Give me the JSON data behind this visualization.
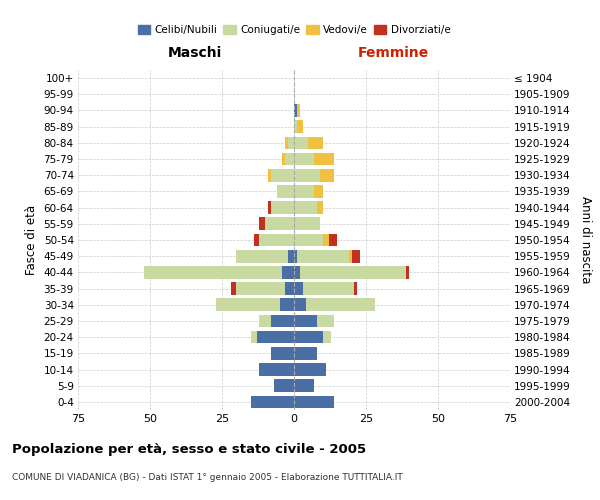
{
  "age_groups_bottom_to_top": [
    "0-4",
    "5-9",
    "10-14",
    "15-19",
    "20-24",
    "25-29",
    "30-34",
    "35-39",
    "40-44",
    "45-49",
    "50-54",
    "55-59",
    "60-64",
    "65-69",
    "70-74",
    "75-79",
    "80-84",
    "85-89",
    "90-94",
    "95-99",
    "100+"
  ],
  "birth_years_bottom_to_top": [
    "2000-2004",
    "1995-1999",
    "1990-1994",
    "1985-1989",
    "1980-1984",
    "1975-1979",
    "1970-1974",
    "1965-1969",
    "1960-1964",
    "1955-1959",
    "1950-1954",
    "1945-1949",
    "1940-1944",
    "1935-1939",
    "1930-1934",
    "1925-1929",
    "1920-1924",
    "1915-1919",
    "1910-1914",
    "1905-1909",
    "≤ 1904"
  ],
  "colors": {
    "celibi": "#4a6fa5",
    "coniugati": "#c8d9a2",
    "vedovi": "#f0c040",
    "divorziati": "#c0311f"
  },
  "maschi": {
    "celibi": [
      15,
      7,
      12,
      8,
      13,
      8,
      5,
      3,
      4,
      2,
      0,
      0,
      0,
      0,
      0,
      0,
      0,
      0,
      0,
      0,
      0
    ],
    "coniugati": [
      0,
      0,
      0,
      0,
      2,
      4,
      22,
      17,
      48,
      18,
      12,
      10,
      8,
      6,
      8,
      3,
      2,
      0,
      0,
      0,
      0
    ],
    "vedovi": [
      0,
      0,
      0,
      0,
      0,
      0,
      0,
      0,
      0,
      0,
      0,
      0,
      0,
      0,
      1,
      1,
      1,
      0,
      0,
      0,
      0
    ],
    "divorziati": [
      0,
      0,
      0,
      0,
      0,
      0,
      0,
      2,
      0,
      0,
      2,
      2,
      1,
      0,
      0,
      0,
      0,
      0,
      0,
      0,
      0
    ]
  },
  "femmine": {
    "nubili": [
      14,
      7,
      11,
      8,
      10,
      8,
      4,
      3,
      2,
      1,
      0,
      0,
      0,
      0,
      0,
      0,
      0,
      0,
      1,
      0,
      0
    ],
    "coniugate": [
      0,
      0,
      0,
      0,
      3,
      6,
      24,
      18,
      37,
      18,
      10,
      9,
      8,
      7,
      9,
      7,
      5,
      1,
      0,
      0,
      0
    ],
    "vedove": [
      0,
      0,
      0,
      0,
      0,
      0,
      0,
      0,
      0,
      1,
      2,
      0,
      2,
      3,
      5,
      7,
      5,
      2,
      1,
      0,
      0
    ],
    "divorziate": [
      0,
      0,
      0,
      0,
      0,
      0,
      0,
      1,
      1,
      3,
      3,
      0,
      0,
      0,
      0,
      0,
      0,
      0,
      0,
      0,
      0
    ]
  },
  "xlim": 75,
  "title": "Popolazione per età, sesso e stato civile - 2005",
  "subtitle": "COMUNE DI VIADANICA (BG) - Dati ISTAT 1° gennaio 2005 - Elaborazione TUTTITALIA.IT",
  "xlabel_left": "Maschi",
  "xlabel_right": "Femmine",
  "ylabel_left": "Fasce di età",
  "ylabel_right": "Anni di nascita",
  "legend_labels": [
    "Celibi/Nubili",
    "Coniugati/e",
    "Vedovi/e",
    "Divorziati/e"
  ]
}
